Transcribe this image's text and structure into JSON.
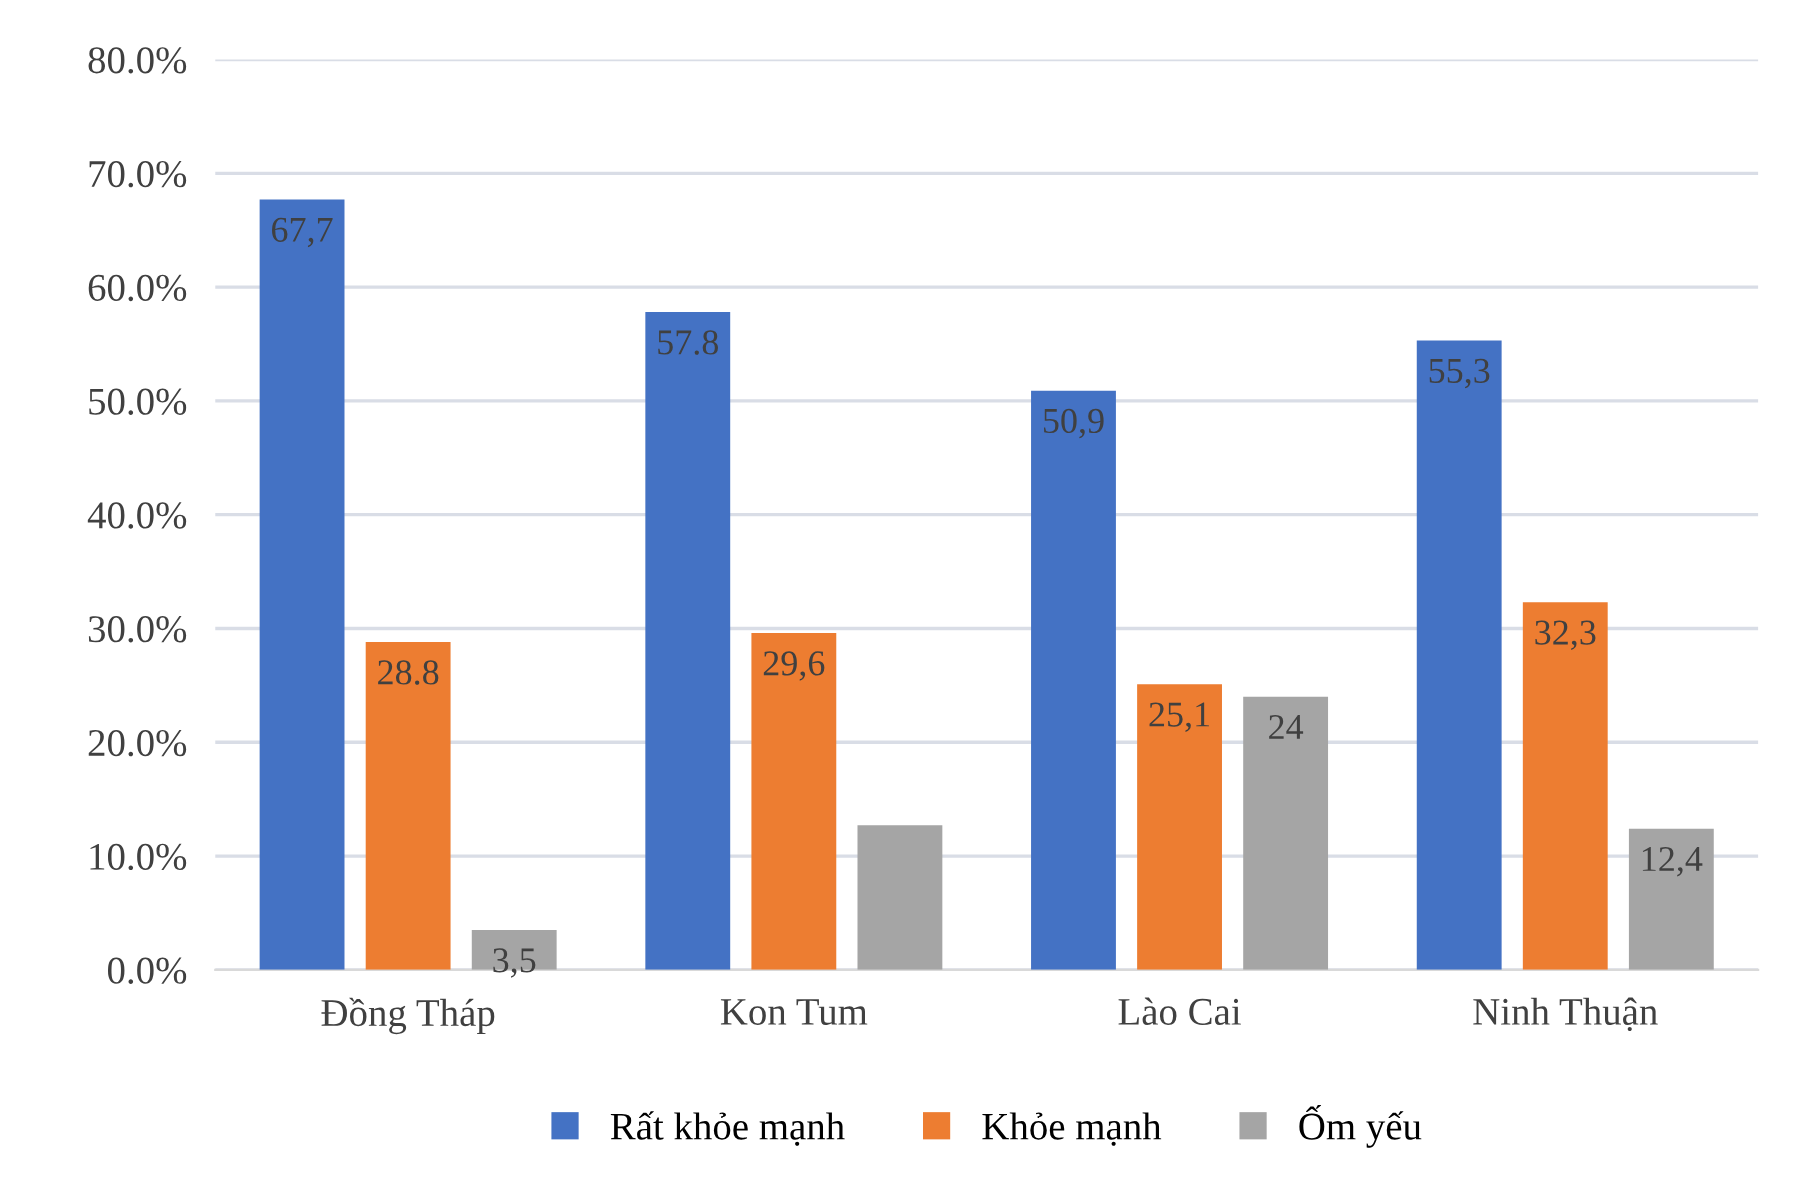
{
  "chart_data": {
    "type": "bar",
    "categories": [
      "Đồng Tháp",
      "Kon Tum",
      "Lào Cai",
      "Ninh Thuận"
    ],
    "series": [
      {
        "name": "Rất khỏe mạnh",
        "color": "#4472c4",
        "values": [
          67.7,
          57.8,
          50.9,
          55.3
        ],
        "value_labels": [
          "67,7",
          "57.8",
          "50,9",
          "55,3"
        ]
      },
      {
        "name": "Khỏe mạnh",
        "color": "#ed7d31",
        "values": [
          28.8,
          29.6,
          25.1,
          32.3
        ],
        "value_labels": [
          "28.8",
          "29,6",
          "25,1",
          "32,3"
        ]
      },
      {
        "name": "Ốm yếu",
        "color": "#a5a5a5",
        "values": [
          3.5,
          12.7,
          24,
          12.4
        ],
        "value_labels": [
          "3,5",
          null,
          "24",
          "12,4"
        ]
      }
    ],
    "ylim": [
      0,
      80
    ],
    "yticks": [
      {
        "value": 0,
        "label": "0.0%"
      },
      {
        "value": 10,
        "label": "10.0%"
      },
      {
        "value": 20,
        "label": "20.0%"
      },
      {
        "value": 30,
        "label": "30.0%"
      },
      {
        "value": 40,
        "label": "40.0%"
      },
      {
        "value": 50,
        "label": "50.0%"
      },
      {
        "value": 60,
        "label": "60.0%"
      },
      {
        "value": 70,
        "label": "70.0%"
      },
      {
        "value": 80,
        "label": "80.0%"
      }
    ],
    "grid": "y",
    "legend": "bottom"
  }
}
